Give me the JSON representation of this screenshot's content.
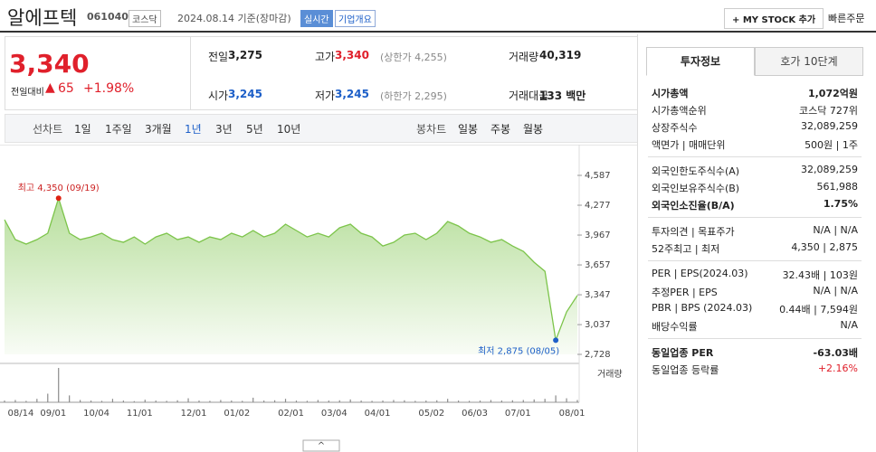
{
  "header": {
    "name": "알에프텍",
    "code": "061040",
    "market": "코스닥",
    "date": "2024.08.14 기준(장마감)",
    "realtime": "실시간",
    "company_info": "기업개요",
    "my_stock": "+ MY STOCK 추가",
    "quick_order": "빠른주문"
  },
  "quote": {
    "price": "3,340",
    "change_label": "전일대비",
    "change": "65",
    "change_pct": "+1.98%",
    "items": [
      {
        "label": "전일",
        "value": "3,275"
      },
      {
        "label": "고가",
        "value": "3,340",
        "note": "(상한가 4,255)",
        "color": "#e0202b"
      },
      {
        "label": "거래량",
        "value": "40,319"
      },
      {
        "label": "시가",
        "value": "3,245",
        "color": "#1d5fc8"
      },
      {
        "label": "저가",
        "value": "3,245",
        "note": "(하한가 2,295)",
        "color": "#1d5fc8"
      },
      {
        "label": "거래대금",
        "value": "133 백만"
      }
    ]
  },
  "period_tabs": {
    "line_label": "선차트",
    "line": [
      "1일",
      "1주일",
      "3개월",
      "1년",
      "3년",
      "5년",
      "10년"
    ],
    "selected": "1년",
    "candle_label": "봉차트",
    "candle": [
      "일봉",
      "주봉",
      "월봉"
    ]
  },
  "chart_data": {
    "type": "line",
    "color": "#7cc44a",
    "categories": [
      null,
      "08/14",
      null,
      null,
      "09/01",
      null,
      null,
      null,
      "10/04",
      null,
      null,
      null,
      "11/01",
      null,
      null,
      null,
      null,
      "12/01",
      null,
      null,
      null,
      "01/02",
      null,
      null,
      null,
      null,
      "02/01",
      null,
      null,
      null,
      "03/04",
      null,
      null,
      null,
      "04/01",
      null,
      null,
      null,
      null,
      "05/02",
      null,
      null,
      null,
      "06/03",
      null,
      null,
      null,
      "07/01",
      null,
      null,
      null,
      null,
      "08/01",
      null
    ],
    "values": [
      4127,
      3920,
      3873,
      3920,
      3986,
      4350,
      3986,
      3920,
      3948,
      3986,
      3920,
      3892,
      3948,
      3873,
      3948,
      3986,
      3920,
      3948,
      3892,
      3948,
      3920,
      3986,
      3948,
      4014,
      3948,
      3986,
      4080,
      4014,
      3948,
      3986,
      3948,
      4042,
      4080,
      3986,
      3948,
      3854,
      3892,
      3967,
      3986,
      3920,
      3986,
      4108,
      4061,
      3986,
      3948,
      3892,
      3920,
      3854,
      3798,
      3685,
      3591,
      2875,
      3169,
      3340
    ],
    "ylim": [
      2728,
      4587
    ],
    "yticks": [
      {
        "value": 4587,
        "label": "4,587"
      },
      {
        "value": 4277,
        "label": "4,277"
      },
      {
        "value": 3967,
        "label": "3,967"
      },
      {
        "value": 3657,
        "label": "3,657"
      },
      {
        "value": 3347,
        "label": "3,347"
      },
      {
        "value": 3037,
        "label": "3,037"
      },
      {
        "value": 2728,
        "label": "2,728"
      }
    ],
    "high_label": "최고 4,350 (09/19)",
    "low_label": "최저 2,875 (08/05)",
    "volume": {
      "name": "거래량",
      "color": "#8a8a8a",
      "values": [
        30000,
        40000,
        25000,
        60000,
        150000,
        600000,
        120000,
        40000,
        30000,
        25000,
        60000,
        30000,
        20000,
        45000,
        30000,
        25000,
        35000,
        70000,
        30000,
        25000,
        40000,
        30000,
        25000,
        80000,
        30000,
        35000,
        60000,
        30000,
        25000,
        40000,
        30000,
        35000,
        50000,
        30000,
        25000,
        30000,
        40000,
        35000,
        25000,
        30000,
        35000,
        60000,
        30000,
        25000,
        30000,
        40000,
        30000,
        35000,
        40000,
        50000,
        60000,
        120000,
        70000,
        40000
      ]
    }
  },
  "info_tabs": [
    "투자정보",
    "호가 10단계"
  ],
  "info": [
    [
      {
        "label": "시가총액",
        "value": "1,072억원",
        "strong": true
      },
      {
        "label": "시가총액순위",
        "value": "코스닥 727위"
      },
      {
        "label": "상장주식수",
        "value": "32,089,259"
      },
      {
        "label": "액면가 | 매매단위",
        "value": "500원 | 1주"
      }
    ],
    [
      {
        "label": "외국인한도주식수(A)",
        "value": "32,089,259"
      },
      {
        "label": "외국인보유주식수(B)",
        "value": "561,988"
      },
      {
        "label": "외국인소진율(B/A)",
        "value": "1.75%",
        "strong": true
      }
    ],
    [
      {
        "label": "투자의견 | 목표주가",
        "value": "N/A | N/A"
      },
      {
        "label": "52주최고 | 최저",
        "value": "4,350 | 2,875"
      }
    ],
    [
      {
        "label": "PER | EPS(2024.03)",
        "value": "32.43배 | 103원"
      },
      {
        "label": "추정PER | EPS",
        "value": "N/A | N/A"
      },
      {
        "label": "PBR | BPS (2024.03)",
        "value": "0.44배 | 7,594원"
      },
      {
        "label": "배당수익률",
        "value": "N/A"
      }
    ],
    [
      {
        "label": "동일업종 PER",
        "value": "-63.03배",
        "strong": true
      },
      {
        "label": "동일업종 등락률",
        "value": "+2.16%",
        "color": "#e0202b"
      }
    ]
  ]
}
